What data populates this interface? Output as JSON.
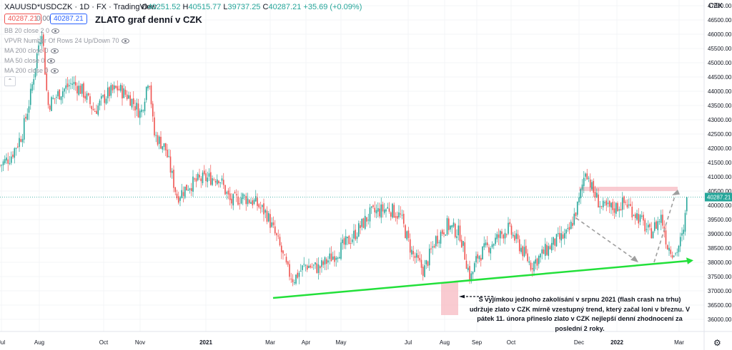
{
  "header": {
    "symbol": "XAUUSD*USDCZK · 1D · FX · TradingView",
    "ohlc": {
      "o_label": "O",
      "o": "40251.52",
      "h_label": "H",
      "h": "40515.77",
      "l_label": "L",
      "l": "39737.25",
      "c_label": "C",
      "c": "40287.21",
      "change": "+35.69 (+0.09%)"
    },
    "sell_price": "40287.21",
    "spread": "0.00",
    "buy_price": "40287.21",
    "title": "ZLATO graf denní v CZK",
    "currency_label": "CZK",
    "indicators": [
      "BB 20 close 2 0",
      "VPVR Number Of Rows 24 Up/Down 70",
      "MA 200 close 0",
      "MA 50 close 0",
      "MA 200 close 0"
    ]
  },
  "annotation": "S vyjímkou jednoho zakolísání v srpnu 2021 (flash crash na trhu) udržuje zlato v CZK mírně vzestupný trend, který začal loni v březnu. V pátek 11. února přineslo zlato v CZK nejlepší denní zhodnocení za poslední 2 roky.",
  "colors": {
    "up": "#26a69a",
    "down": "#ef5350",
    "trendline": "#22e03a",
    "arrow": "#9e9e9e",
    "last_price": "#26a69a",
    "highlight": "#f7b9c1"
  },
  "chart_data": {
    "type": "candlestick",
    "title": "ZLATO graf denní v CZK",
    "y_axis": {
      "min": 36000,
      "max": 47000,
      "ticks": [
        36000,
        36500,
        37000,
        37500,
        38000,
        38500,
        39000,
        39500,
        40000,
        40500,
        41000,
        41500,
        42000,
        42500,
        43000,
        43500,
        44000,
        44500,
        45000,
        45500,
        46000,
        46500,
        47000
      ],
      "side": "right"
    },
    "x_axis": {
      "labels": [
        "Jul",
        "Aug",
        "Oct",
        "Nov",
        "2021",
        "Mar",
        "Apr",
        "May",
        "Jul",
        "Aug",
        "Sep",
        "Oct",
        "Dec",
        "2022",
        "Mar"
      ]
    },
    "last_price": 40287.21,
    "close_path": [
      [
        "2020-07-01",
        41400
      ],
      [
        "2020-07-10",
        41700
      ],
      [
        "2020-07-20",
        42500
      ],
      [
        "2020-07-27",
        43800
      ],
      [
        "2020-08-03",
        45600
      ],
      [
        "2020-08-06",
        46200
      ],
      [
        "2020-08-11",
        43500
      ],
      [
        "2020-08-20",
        43900
      ],
      [
        "2020-09-01",
        44300
      ],
      [
        "2020-09-10",
        44000
      ],
      [
        "2020-09-20",
        43300
      ],
      [
        "2020-10-01",
        43900
      ],
      [
        "2020-10-10",
        44100
      ],
      [
        "2020-10-20",
        43800
      ],
      [
        "2020-10-30",
        43200
      ],
      [
        "2020-11-06",
        44600
      ],
      [
        "2020-11-10",
        42500
      ],
      [
        "2020-11-20",
        42000
      ],
      [
        "2020-11-30",
        40300
      ],
      [
        "2020-12-10",
        40700
      ],
      [
        "2020-12-20",
        40900
      ],
      [
        "2021-01-05",
        41000
      ],
      [
        "2021-01-15",
        40100
      ],
      [
        "2021-01-25",
        40300
      ],
      [
        "2021-02-05",
        40100
      ],
      [
        "2021-02-15",
        39700
      ],
      [
        "2021-02-25",
        38700
      ],
      [
        "2021-03-05",
        37700
      ],
      [
        "2021-03-10",
        37400
      ],
      [
        "2021-03-20",
        37900
      ],
      [
        "2021-04-01",
        37800
      ],
      [
        "2021-04-15",
        38300
      ],
      [
        "2021-04-30",
        38900
      ],
      [
        "2021-05-15",
        39700
      ],
      [
        "2021-05-31",
        39900
      ],
      [
        "2021-06-10",
        39600
      ],
      [
        "2021-06-20",
        38300
      ],
      [
        "2021-06-30",
        37700
      ],
      [
        "2021-07-10",
        38800
      ],
      [
        "2021-07-20",
        39300
      ],
      [
        "2021-07-31",
        39000
      ],
      [
        "2021-08-09",
        37400
      ],
      [
        "2021-08-15",
        38200
      ],
      [
        "2021-08-31",
        38800
      ],
      [
        "2021-09-10",
        39200
      ],
      [
        "2021-09-20",
        38600
      ],
      [
        "2021-09-30",
        37900
      ],
      [
        "2021-10-10",
        38300
      ],
      [
        "2021-10-20",
        38700
      ],
      [
        "2021-11-01",
        39000
      ],
      [
        "2021-11-10",
        40100
      ],
      [
        "2021-11-16",
        41300
      ],
      [
        "2021-11-22",
        40500
      ],
      [
        "2021-11-30",
        39900
      ],
      [
        "2021-12-10",
        39900
      ],
      [
        "2021-12-20",
        40100
      ],
      [
        "2021-12-31",
        39600
      ],
      [
        "2022-01-10",
        39000
      ],
      [
        "2022-01-20",
        39600
      ],
      [
        "2022-01-25",
        38600
      ],
      [
        "2022-02-01",
        38300
      ],
      [
        "2022-02-08",
        39000
      ],
      [
        "2022-02-11",
        40287
      ]
    ]
  }
}
